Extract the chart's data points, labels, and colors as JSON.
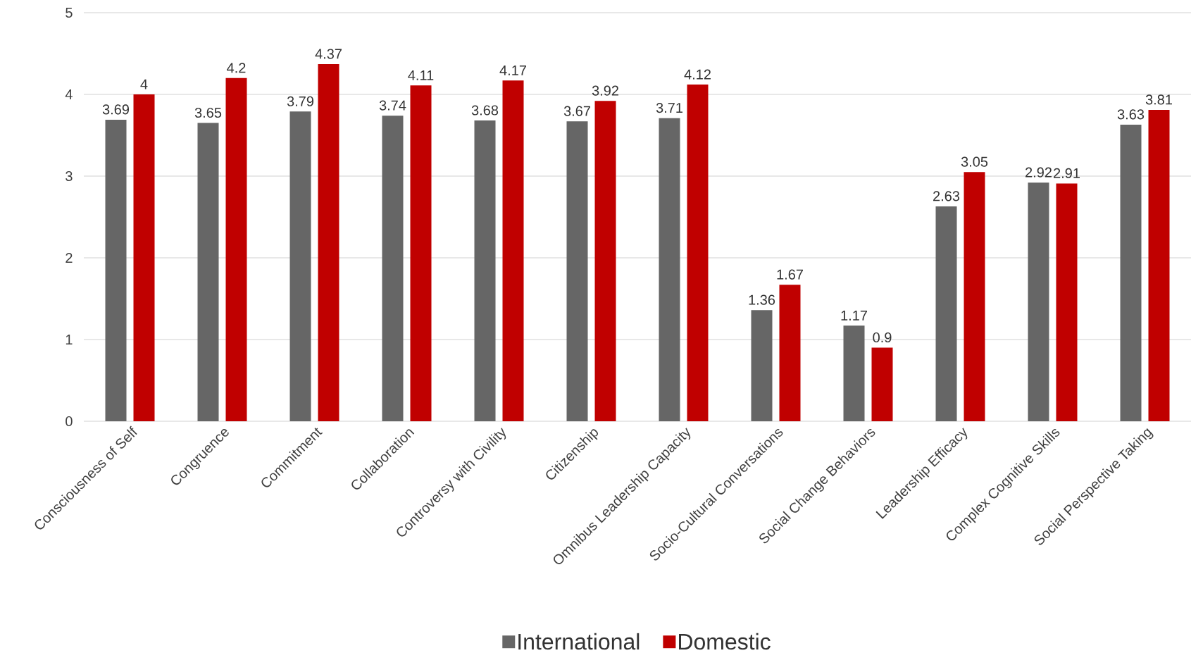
{
  "chart_data": {
    "type": "bar",
    "categories": [
      "Consciousness of Self",
      "Congruence",
      "Commitment",
      "Collaboration",
      "Controversy with Civility",
      "Citizenship",
      "Omnibus Leadership Capacity",
      "Socio-Cultural Conversations",
      "Social Change Behaviors",
      "Leadership Efficacy",
      "Complex Cognitive Skills",
      "Social Perspective Taking"
    ],
    "series": [
      {
        "name": "International",
        "color": "#666666",
        "values": [
          3.69,
          3.65,
          3.79,
          3.74,
          3.68,
          3.67,
          3.71,
          1.36,
          1.17,
          2.63,
          2.92,
          3.63
        ]
      },
      {
        "name": "Domestic",
        "color": "#c00000",
        "values": [
          4,
          4.2,
          4.37,
          4.11,
          4.17,
          3.92,
          4.12,
          1.67,
          0.9,
          3.05,
          2.91,
          3.81
        ]
      }
    ],
    "ylim": [
      0,
      5
    ],
    "yticks": [
      0,
      1,
      2,
      3,
      4,
      5
    ],
    "grid": "y",
    "legend": "bottom",
    "data_labels": true
  }
}
